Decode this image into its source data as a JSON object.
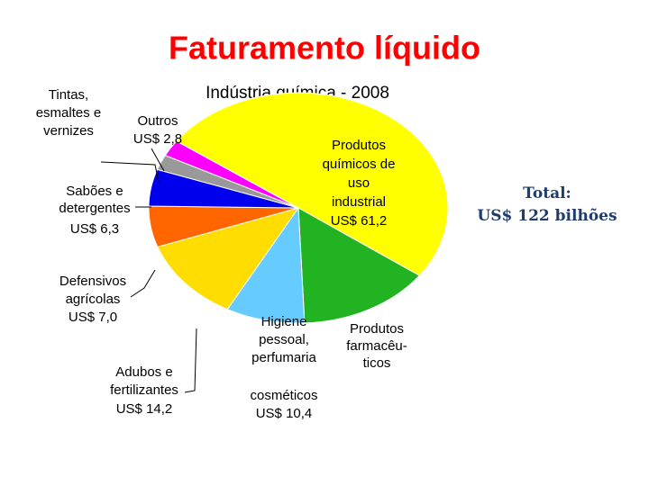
{
  "chart_data": {
    "type": "pie",
    "title": "Faturamento líquido",
    "subtitle": "Indústria química - 2008",
    "annotation": "Total:\nUS$ 122 bilhões",
    "categories": [
      "Produtos\nquímicos de\nuso\nindustrial",
      "Produtos\nfarmacêu-\nticos",
      "Higiene\npessoal,\nperfumaria\ncosméticos",
      "Adubos e\nfertilizantes",
      "Defensivos\nagrícolas",
      "Sabões e\ndetergentes",
      "Tintas,\nesmaltes e\nvernizes",
      "Outros"
    ],
    "values": [
      61.2,
      17.5,
      10.4,
      14.2,
      7.0,
      6.3,
      2.6,
      2.8
    ],
    "value_labels": [
      "US$ 61,2",
      null,
      "US$ 10,4",
      "US$ 14,2",
      "US$ 7,0",
      "US$ 6,3",
      null,
      "US$ 2,8"
    ],
    "colors": [
      "#ffff00",
      "#22b322",
      "#66ccff",
      "#ffdd00",
      "#ff6600",
      "#0000ee",
      "#999999",
      "#ff00ff"
    ]
  }
}
